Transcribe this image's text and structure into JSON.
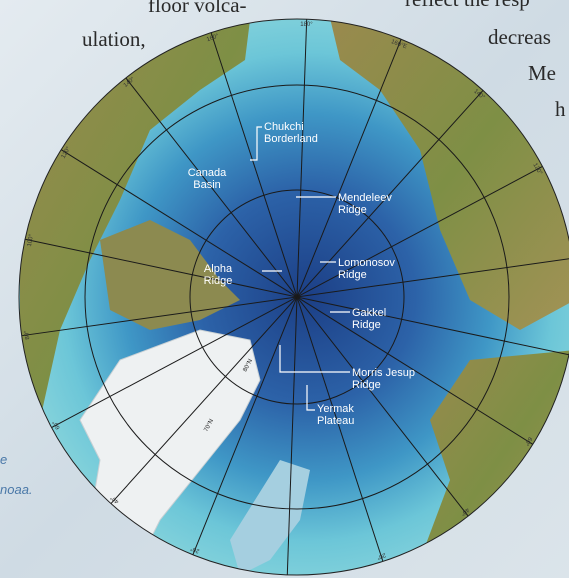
{
  "background_text": {
    "left": [
      "floor volca-",
      "ulation,"
    ],
    "right": [
      "reflect the resp",
      "decreas",
      "Me",
      "h"
    ],
    "caption": [
      "e",
      "noaa."
    ]
  },
  "map": {
    "features": [
      {
        "lines": [
          "Chukchi",
          "Borderland"
        ]
      },
      {
        "lines": [
          "Canada",
          "Basin"
        ]
      },
      {
        "lines": [
          "Mendeleev",
          "Ridge"
        ]
      },
      {
        "lines": [
          "Lomonosov",
          "Ridge"
        ]
      },
      {
        "lines": [
          "Alpha",
          "Ridge"
        ]
      },
      {
        "lines": [
          "Gakkel",
          "Ridge"
        ]
      },
      {
        "lines": [
          "Morris Jesup",
          "Ridge"
        ]
      },
      {
        "lines": [
          "Yermak",
          "Plateau"
        ]
      }
    ],
    "longitude_labels": [
      "180°",
      "160°E",
      "140°",
      "120°",
      "60°",
      "40°",
      "20°",
      "160°",
      "140°",
      "120°",
      "100°",
      "80°",
      "60°",
      "40°",
      "20°"
    ],
    "latitude_labels": [
      "80°N",
      "70°N"
    ]
  }
}
